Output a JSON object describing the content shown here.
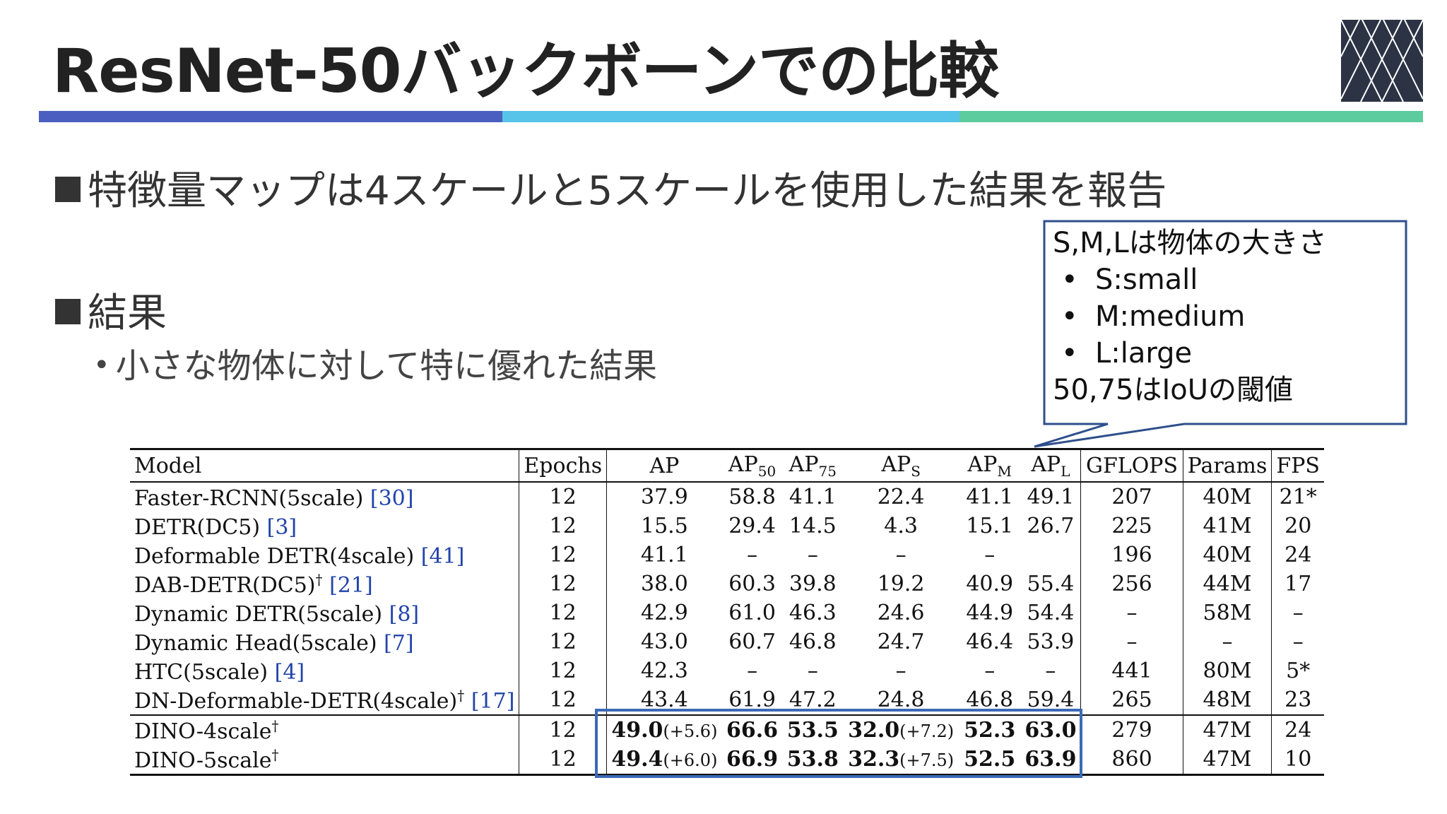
{
  "slide": {
    "title": "ResNet-50バックボーンでの比較",
    "bullets": [
      {
        "text": "特徴量マップは4スケールと5スケールを使用した結果を報告"
      },
      {
        "text": "結果",
        "sub": [
          "小さな物体に対して特に優れた結果"
        ]
      }
    ],
    "callout": {
      "heading": "S,M,Lは物体の大きさ",
      "items": [
        "S:small",
        "M:medium",
        "L:large"
      ],
      "footer": "50,75はIoUの閾値",
      "bullet_glyph": "•"
    },
    "colors": {
      "bar1": "#4a5fbf",
      "bar2": "#56c3e8",
      "bar3": "#5ccb9e",
      "callout_border": "#2e4f8c",
      "highlight_border": "#3b6ab8"
    },
    "logo_icon": "diamond-lattice-icon"
  },
  "table": {
    "headers": {
      "model": "Model",
      "epochs": "Epochs",
      "ap": "AP",
      "ap50": "AP",
      "ap50_sub": "50",
      "ap75": "AP",
      "ap75_sub": "75",
      "aps": "AP",
      "aps_sub": "S",
      "apm": "AP",
      "apm_sub": "M",
      "apl": "AP",
      "apl_sub": "L",
      "gflops": "GFLOPS",
      "params": "Params",
      "fps": "FPS"
    },
    "rows": [
      {
        "model": "Faster-RCNN(5scale)",
        "dagger": "",
        "ref": "[30]",
        "epochs": "12",
        "ap": "37.9",
        "ap_gain": "",
        "ap50": "58.8",
        "ap75": "41.1",
        "aps": "22.4",
        "aps_gain": "",
        "apm": "41.1",
        "apl": "49.1",
        "gflops": "207",
        "params": "40M",
        "fps": "21*"
      },
      {
        "model": "DETR(DC5)",
        "dagger": "",
        "ref": "[3]",
        "epochs": "12",
        "ap": "15.5",
        "ap_gain": "",
        "ap50": "29.4",
        "ap75": "14.5",
        "aps": "4.3",
        "aps_gain": "",
        "apm": "15.1",
        "apl": "26.7",
        "gflops": "225",
        "params": "41M",
        "fps": "20"
      },
      {
        "model": "Deformable DETR(4scale)",
        "dagger": "",
        "ref": "[41]",
        "epochs": "12",
        "ap": "41.1",
        "ap_gain": "",
        "ap50": "–",
        "ap75": "–",
        "aps": "–",
        "aps_gain": "",
        "apm": "–",
        "apl": "",
        "gflops": "196",
        "params": "40M",
        "fps": "24"
      },
      {
        "model": "DAB-DETR(DC5)",
        "dagger": "†",
        "ref": "[21]",
        "epochs": "12",
        "ap": "38.0",
        "ap_gain": "",
        "ap50": "60.3",
        "ap75": "39.8",
        "aps": "19.2",
        "aps_gain": "",
        "apm": "40.9",
        "apl": "55.4",
        "gflops": "256",
        "params": "44M",
        "fps": "17"
      },
      {
        "model": "Dynamic DETR(5scale)",
        "dagger": "",
        "ref": "[8]",
        "epochs": "12",
        "ap": "42.9",
        "ap_gain": "",
        "ap50": "61.0",
        "ap75": "46.3",
        "aps": "24.6",
        "aps_gain": "",
        "apm": "44.9",
        "apl": "54.4",
        "gflops": "–",
        "params": "58M",
        "fps": "–"
      },
      {
        "model": "Dynamic Head(5scale)",
        "dagger": "",
        "ref": "[7]",
        "epochs": "12",
        "ap": "43.0",
        "ap_gain": "",
        "ap50": "60.7",
        "ap75": "46.8",
        "aps": "24.7",
        "aps_gain": "",
        "apm": "46.4",
        "apl": "53.9",
        "gflops": "–",
        "params": "–",
        "fps": "–"
      },
      {
        "model": "HTC(5scale)",
        "dagger": "",
        "ref": "[4]",
        "epochs": "12",
        "ap": "42.3",
        "ap_gain": "",
        "ap50": "–",
        "ap75": "–",
        "aps": "–",
        "aps_gain": "",
        "apm": "–",
        "apl": "–",
        "gflops": "441",
        "params": "80M",
        "fps": "5*"
      },
      {
        "model": "DN-Deformable-DETR(4scale)",
        "dagger": "†",
        "ref": "[17]",
        "epochs": "12",
        "ap": "43.4",
        "ap_gain": "",
        "ap50": "61.9",
        "ap75": "47.2",
        "aps": "24.8",
        "aps_gain": "",
        "apm": "46.8",
        "apl": "59.4",
        "gflops": "265",
        "params": "48M",
        "fps": "23"
      }
    ],
    "dino_rows": [
      {
        "model": "DINO-4scale",
        "dagger": "†",
        "ref": "",
        "epochs": "12",
        "ap": "49.0",
        "ap_gain": "(+5.6)",
        "ap50": "66.6",
        "ap75": "53.5",
        "aps": "32.0",
        "aps_gain": "(+7.2)",
        "apm": "52.3",
        "apl": "63.0",
        "gflops": "279",
        "params": "47M",
        "fps": "24"
      },
      {
        "model": "DINO-5scale",
        "dagger": "†",
        "ref": "",
        "epochs": "12",
        "ap": "49.4",
        "ap_gain": "(+6.0)",
        "ap50": "66.9",
        "ap75": "53.8",
        "aps": "32.3",
        "aps_gain": "(+7.5)",
        "apm": "52.5",
        "apl": "63.9",
        "gflops": "860",
        "params": "47M",
        "fps": "10"
      }
    ]
  }
}
